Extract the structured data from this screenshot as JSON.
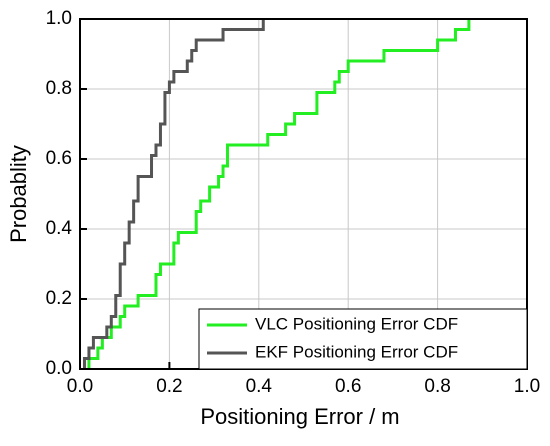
{
  "chart_data": {
    "type": "line",
    "step": true,
    "xlabel": "Positioning Error / m",
    "ylabel": "Probablity",
    "xlim": [
      0,
      1
    ],
    "ylim": [
      0,
      1
    ],
    "xticks": [
      {
        "value": 0,
        "label": "0.0"
      },
      0.2,
      0.4,
      0.6,
      0.8,
      {
        "value": 1,
        "label": "1.0"
      }
    ],
    "yticks": [
      {
        "value": 0,
        "label": "0.0"
      },
      0.2,
      0.4,
      0.6,
      0.8,
      {
        "value": 1,
        "label": "1.0"
      }
    ],
    "grid": true,
    "legend": "lower right",
    "series": [
      {
        "name": "VLC Positioning Error CDF",
        "color": "#22ee22",
        "x": [
          0.02,
          0.02,
          0.04,
          0.05,
          0.07,
          0.09,
          0.1,
          0.13,
          0.17,
          0.17,
          0.18,
          0.21,
          0.21,
          0.22,
          0.26,
          0.26,
          0.27,
          0.29,
          0.31,
          0.32,
          0.33,
          0.33,
          0.42,
          0.46,
          0.48,
          0.53,
          0.53,
          0.57,
          0.58,
          0.6,
          0.68,
          0.8,
          0.84,
          0.87
        ],
        "values": [
          0,
          0.03,
          0.06,
          0.09,
          0.12,
          0.15,
          0.18,
          0.21,
          0.24,
          0.27,
          0.3,
          0.33,
          0.36,
          0.39,
          0.42,
          0.45,
          0.48,
          0.52,
          0.55,
          0.58,
          0.61,
          0.64,
          0.67,
          0.7,
          0.73,
          0.76,
          0.79,
          0.82,
          0.85,
          0.88,
          0.91,
          0.94,
          0.97,
          1.0
        ]
      },
      {
        "name": "EKF Positioning Error CDF",
        "color": "#555555",
        "x": [
          0.01,
          0.01,
          0.02,
          0.03,
          0.06,
          0.07,
          0.08,
          0.08,
          0.09,
          0.09,
          0.09,
          0.1,
          0.1,
          0.11,
          0.11,
          0.12,
          0.12,
          0.13,
          0.13,
          0.16,
          0.16,
          0.17,
          0.18,
          0.18,
          0.19,
          0.19,
          0.19,
          0.2,
          0.21,
          0.24,
          0.25,
          0.26,
          0.32,
          0.41
        ],
        "values": [
          0,
          0.03,
          0.06,
          0.09,
          0.12,
          0.15,
          0.18,
          0.21,
          0.24,
          0.27,
          0.3,
          0.33,
          0.36,
          0.39,
          0.42,
          0.45,
          0.48,
          0.52,
          0.55,
          0.58,
          0.61,
          0.64,
          0.67,
          0.7,
          0.73,
          0.76,
          0.79,
          0.82,
          0.85,
          0.88,
          0.91,
          0.94,
          0.97,
          1.0
        ]
      }
    ]
  }
}
